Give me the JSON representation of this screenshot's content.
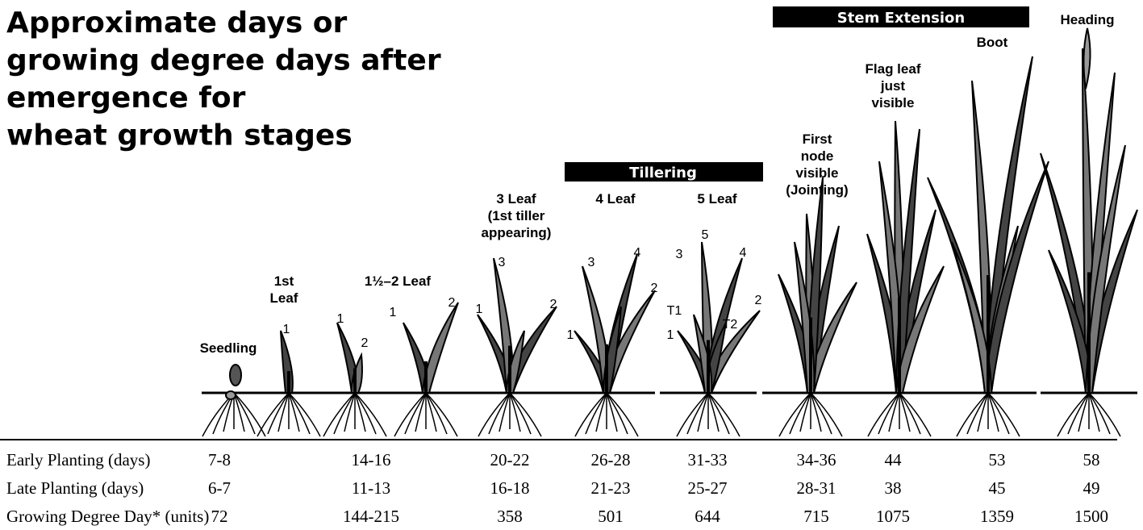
{
  "title": [
    "Approximate days or",
    "growing degree days after",
    "emergence for",
    "wheat growth stages"
  ],
  "groups": [
    {
      "label": "Stem Extension"
    },
    {
      "label": "Tillering"
    }
  ],
  "stages": [
    {
      "label": [
        "Seedling"
      ]
    },
    {
      "label": [
        "1st",
        "Leaf"
      ],
      "leaf_labels": [
        "1"
      ]
    },
    {
      "label": [
        "1½–2 Leaf"
      ],
      "leaf_labels": [
        "1",
        "2",
        "1",
        "2"
      ]
    },
    {
      "label": [
        "3 Leaf",
        "(1st tiller",
        "appearing)"
      ],
      "leaf_labels": [
        "3",
        "1",
        "2"
      ]
    },
    {
      "label": [
        "4 Leaf"
      ],
      "leaf_labels": [
        "3",
        "4",
        "2",
        "1"
      ]
    },
    {
      "label": [
        "5 Leaf"
      ],
      "leaf_labels": [
        "5",
        "3",
        "4",
        "2",
        "T1",
        "T2",
        "1"
      ]
    },
    {
      "label": [
        "First",
        "node",
        "visible",
        "(Jointing)"
      ]
    },
    {
      "label": [
        "Flag leaf",
        "just",
        "visible"
      ]
    },
    {
      "label": [
        "Boot"
      ]
    },
    {
      "label": [
        "Heading"
      ]
    }
  ],
  "table": {
    "rows": [
      {
        "label": "Early Planting (days)",
        "values": [
          "7-8",
          "14-16",
          "20-22",
          "26-28",
          "31-33",
          "34-36",
          "44",
          "53",
          "58"
        ]
      },
      {
        "label": "Late Planting (days)",
        "values": [
          "6-7",
          "11-13",
          "16-18",
          "21-23",
          "25-27",
          "28-31",
          "38",
          "45",
          "49"
        ]
      },
      {
        "label": "Growing Degree Day* (units)",
        "values": [
          "72",
          "144-215",
          "358",
          "501",
          "644",
          "715",
          "1075",
          "1359",
          "1500"
        ]
      }
    ]
  }
}
